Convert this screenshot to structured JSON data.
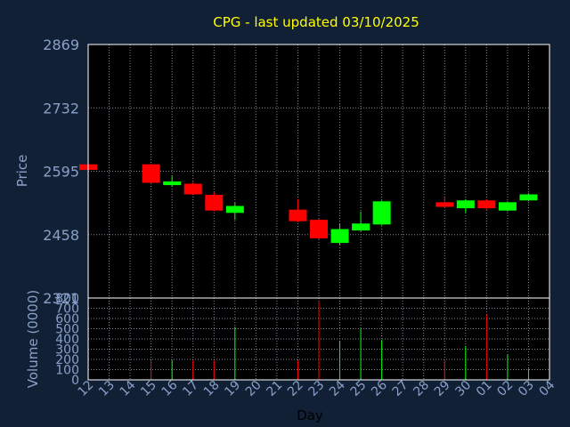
{
  "chart_data": {
    "type": "candlestick",
    "title": "CPG - last updated 03/10/2025",
    "xlabel": "Day",
    "price_panel": {
      "ylabel": "Price",
      "ylim": [
        2321,
        2869
      ],
      "yticks": [
        2869,
        2732,
        2595,
        2458,
        2321
      ]
    },
    "volume_panel": {
      "ylabel": "Volume (0000)",
      "ylim": [
        0,
        800
      ],
      "yticks": [
        800,
        700,
        600,
        500,
        400,
        300,
        200,
        100,
        0
      ]
    },
    "x_ticks": [
      "12",
      "13",
      "14",
      "15",
      "16",
      "17",
      "18",
      "19",
      "20",
      "21",
      "22",
      "23",
      "24",
      "25",
      "26",
      "27",
      "28",
      "29",
      "30",
      "01",
      "02",
      "03",
      "04"
    ],
    "candles": [
      {
        "day": "12",
        "open": 2610,
        "close": 2598,
        "high": 2612,
        "low": 2598,
        "volume": 0
      },
      {
        "day": "15",
        "open": 2610,
        "close": 2570,
        "high": 2612,
        "low": 2568,
        "volume": 190
      },
      {
        "day": "16",
        "open": 2565,
        "close": 2573,
        "high": 2585,
        "low": 2562,
        "volume": 190
      },
      {
        "day": "17",
        "open": 2568,
        "close": 2545,
        "high": 2572,
        "low": 2543,
        "volume": 190
      },
      {
        "day": "18",
        "open": 2544,
        "close": 2510,
        "high": 2550,
        "low": 2508,
        "volume": 190
      },
      {
        "day": "19",
        "open": 2505,
        "close": 2520,
        "high": 2528,
        "low": 2490,
        "volume": 520
      },
      {
        "day": "22",
        "open": 2512,
        "close": 2487,
        "high": 2535,
        "low": 2485,
        "volume": 190
      },
      {
        "day": "23",
        "open": 2490,
        "close": 2450,
        "high": 2492,
        "low": 2448,
        "volume": 760
      },
      {
        "day": "24",
        "open": 2440,
        "close": 2470,
        "high": 2482,
        "low": 2435,
        "volume": 380
      },
      {
        "day": "25",
        "open": 2467,
        "close": 2482,
        "high": 2508,
        "low": 2465,
        "volume": 500
      },
      {
        "day": "26",
        "open": 2480,
        "close": 2530,
        "high": 2532,
        "low": 2478,
        "volume": 390
      },
      {
        "day": "29",
        "open": 2528,
        "close": 2518,
        "high": 2538,
        "low": 2515,
        "volume": 200
      },
      {
        "day": "30",
        "open": 2515,
        "close": 2532,
        "high": 2535,
        "low": 2505,
        "volume": 330
      },
      {
        "day": "01",
        "open": 2532,
        "close": 2515,
        "high": 2535,
        "low": 2512,
        "volume": 640
      },
      {
        "day": "02",
        "open": 2510,
        "close": 2528,
        "high": 2530,
        "low": 2508,
        "volume": 250
      },
      {
        "day": "03",
        "open": 2532,
        "close": 2545,
        "high": 2548,
        "low": 2530,
        "volume": 110
      }
    ],
    "grid": true
  },
  "colors": {
    "background": "#112035",
    "plot_bg": "#000000",
    "up": "#00ff00",
    "down": "#ff0000",
    "grid": "#7f8899",
    "text": "#8aa0c8",
    "title": "#ffff00"
  }
}
